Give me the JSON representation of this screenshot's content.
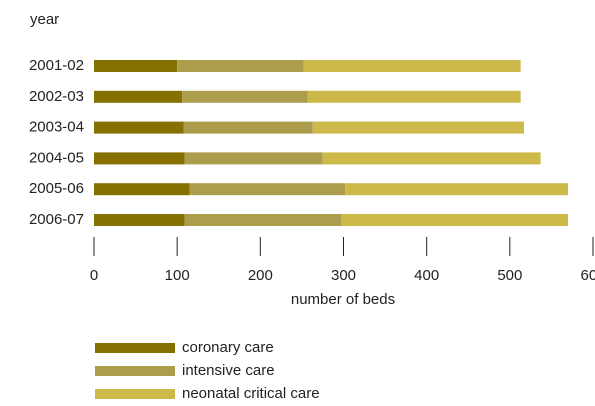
{
  "chart_data": {
    "type": "stacked_bar_horizontal",
    "y_label": "year",
    "x_label": "number of beds",
    "categories": [
      "2001-02",
      "2002-03",
      "2003-04",
      "2004-05",
      "2005-06",
      "2006-07"
    ],
    "series": [
      {
        "name": "coronary care",
        "color": "#857000",
        "values": [
          100,
          106,
          108,
          109,
          115,
          109
        ]
      },
      {
        "name": "intensive care",
        "color": "#ab9d4c",
        "values": [
          152,
          151,
          155,
          166,
          187,
          188
        ]
      },
      {
        "name": "neonatal critical care",
        "color": "#cdb94a",
        "values": [
          261,
          256,
          254,
          262,
          268,
          273
        ]
      }
    ],
    "xlim": [
      0,
      600
    ],
    "xticks": [
      0,
      100,
      200,
      300,
      400,
      500,
      600
    ],
    "grid": false
  }
}
